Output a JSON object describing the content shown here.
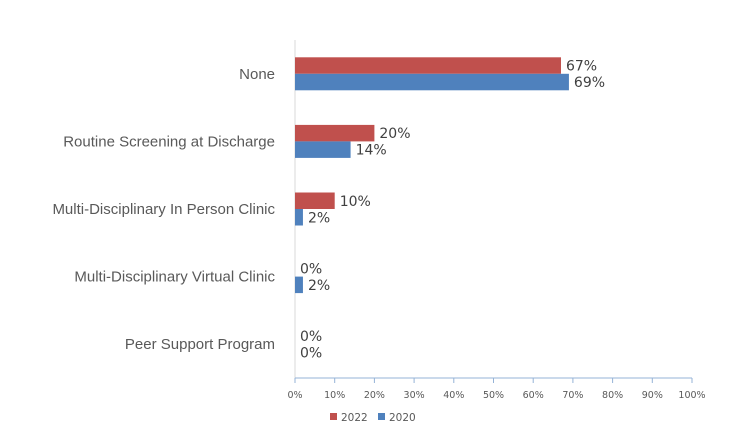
{
  "chart_data": {
    "type": "bar",
    "orientation": "horizontal",
    "title": "",
    "xlabel": "",
    "ylabel": "",
    "categories": [
      "None",
      "Routine Screening at Discharge",
      "Multi-Disciplinary In Person Clinic",
      "Multi-Disciplinary Virtual Clinic",
      "Peer Support Program"
    ],
    "series": [
      {
        "name": "2022",
        "color": "#c0504d",
        "values": [
          67,
          20,
          10,
          0,
          0
        ],
        "labels": [
          "67%",
          "20%",
          "10%",
          "0%",
          "0%"
        ]
      },
      {
        "name": "2020",
        "color": "#4f81bd",
        "values": [
          69,
          14,
          2,
          2,
          0
        ],
        "labels": [
          "69%",
          "14%",
          "2%",
          "2%",
          "0%"
        ]
      }
    ],
    "xlim": [
      0,
      100
    ],
    "xticks": [
      0,
      10,
      20,
      30,
      40,
      50,
      60,
      70,
      80,
      90,
      100
    ],
    "xtick_labels": [
      "0%",
      "10%",
      "20%",
      "30%",
      "40%",
      "50%",
      "60%",
      "70%",
      "80%",
      "90%",
      "100%"
    ],
    "grid": false,
    "legend": {
      "position": "bottom",
      "entries": [
        "2022",
        "2020"
      ]
    }
  }
}
